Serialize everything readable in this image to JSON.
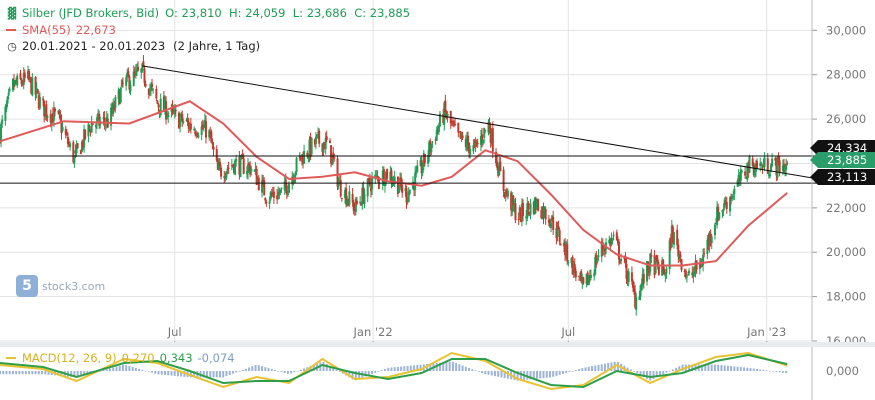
{
  "legend": {
    "instrument": "Silber (JFD Brokers, Bid)",
    "ohlc": "O: 23,810  H: 24,059  L: 23,686  C: 23,885",
    "sma_label": "SMA(55)",
    "sma_value": "22,673",
    "range": "20.01.2021 - 20.01.2023",
    "period": "(2 Jahre, 1 Tag)",
    "macd_label": "MACD(12, 26, 9)",
    "macd_v1": "0,270",
    "macd_v2": "0,343",
    "macd_v3": "-0,074"
  },
  "watermark": {
    "logo": "5",
    "text": "stock3.com"
  },
  "colors": {
    "up": "#1f9d55",
    "down": "#c0392b",
    "sma": "#e05a5a",
    "macd": "#e8c230",
    "signal": "#2e9e48",
    "hist": "#9db4d8",
    "last": "#2a9d6a",
    "grid": "#e3e3e3",
    "axis_text": "#777777"
  },
  "chart_data": [
    {
      "type": "candlestick",
      "title": "Silber (JFD Brokers, Bid)",
      "x_ticks": [
        "Jul",
        "Jan '22",
        "Jul",
        "Jan '23"
      ],
      "y_ticks": [
        "30,000",
        "28,000",
        "26,000",
        "24,000",
        "22,000",
        "20,000",
        "18,000",
        "16,000"
      ],
      "ylim": [
        16,
        30.6
      ],
      "x_range": [
        "20.01.2021",
        "20.01.2023"
      ],
      "ohlc_last": {
        "open": 23.81,
        "high": 24.059,
        "low": 23.686,
        "close": 23.885
      },
      "horizontal_lines": [
        {
          "label": "24,334",
          "value": 24.334
        },
        {
          "label": "23,113",
          "value": 23.113
        }
      ],
      "last_price_label": "23,885",
      "last_price": 23.885,
      "trendline": {
        "start": [
          "2021-06-01",
          28.4
        ],
        "end": [
          "2023-02-12",
          23.35
        ]
      },
      "close_path": [
        [
          "2021-01-20",
          25.4
        ],
        [
          "2021-02-01",
          27.5
        ],
        [
          "2021-02-15",
          27.8
        ],
        [
          "2021-03-01",
          26.5
        ],
        [
          "2021-03-15",
          26.0
        ],
        [
          "2021-03-30",
          24.2
        ],
        [
          "2021-04-15",
          25.8
        ],
        [
          "2021-05-01",
          25.9
        ],
        [
          "2021-05-15",
          27.6
        ],
        [
          "2021-06-01",
          28.1
        ],
        [
          "2021-06-15",
          26.7
        ],
        [
          "2021-07-01",
          26.1
        ],
        [
          "2021-07-15",
          25.7
        ],
        [
          "2021-08-01",
          25.5
        ],
        [
          "2021-08-10",
          23.6
        ],
        [
          "2021-08-25",
          24.0
        ],
        [
          "2021-09-10",
          23.8
        ],
        [
          "2021-09-25",
          22.5
        ],
        [
          "2021-10-10",
          22.7
        ],
        [
          "2021-10-25",
          24.2
        ],
        [
          "2021-11-10",
          25.0
        ],
        [
          "2021-11-20",
          24.9
        ],
        [
          "2021-12-01",
          23.0
        ],
        [
          "2021-12-15",
          22.0
        ],
        [
          "2021-12-31",
          23.2
        ],
        [
          "2022-01-15",
          23.6
        ],
        [
          "2022-02-01",
          22.6
        ],
        [
          "2022-02-15",
          23.8
        ],
        [
          "2022-03-08",
          26.3
        ],
        [
          "2022-03-20",
          25.2
        ],
        [
          "2022-04-05",
          24.6
        ],
        [
          "2022-04-18",
          25.8
        ],
        [
          "2022-05-01",
          23.0
        ],
        [
          "2022-05-15",
          21.6
        ],
        [
          "2022-06-01",
          22.2
        ],
        [
          "2022-06-15",
          21.5
        ],
        [
          "2022-07-01",
          19.8
        ],
        [
          "2022-07-15",
          18.3
        ],
        [
          "2022-08-01",
          20.2
        ],
        [
          "2022-08-12",
          20.6
        ],
        [
          "2022-08-25",
          19.0
        ],
        [
          "2022-09-01",
          17.9
        ],
        [
          "2022-09-15",
          19.5
        ],
        [
          "2022-09-30",
          19.1
        ],
        [
          "2022-10-05",
          20.9
        ],
        [
          "2022-10-20",
          18.8
        ],
        [
          "2022-11-01",
          19.5
        ],
        [
          "2022-11-15",
          21.6
        ],
        [
          "2022-12-01",
          22.7
        ],
        [
          "2022-12-15",
          23.9
        ],
        [
          "2023-01-01",
          23.9
        ],
        [
          "2023-01-20",
          23.885
        ]
      ],
      "sma_path": [
        [
          "2021-01-20",
          25.0
        ],
        [
          "2021-03-20",
          25.9
        ],
        [
          "2021-05-20",
          25.8
        ],
        [
          "2021-07-15",
          26.8
        ],
        [
          "2021-08-15",
          25.8
        ],
        [
          "2021-09-15",
          24.3
        ],
        [
          "2021-10-15",
          23.3
        ],
        [
          "2021-11-15",
          23.4
        ],
        [
          "2021-12-15",
          23.6
        ],
        [
          "2022-01-15",
          23.2
        ],
        [
          "2022-02-15",
          23.0
        ],
        [
          "2022-03-15",
          23.4
        ],
        [
          "2022-04-15",
          24.6
        ],
        [
          "2022-05-15",
          24.1
        ],
        [
          "2022-06-15",
          22.6
        ],
        [
          "2022-07-15",
          21.0
        ],
        [
          "2022-08-15",
          19.9
        ],
        [
          "2022-09-15",
          19.4
        ],
        [
          "2022-10-15",
          19.4
        ],
        [
          "2022-11-15",
          19.6
        ],
        [
          "2022-12-15",
          21.2
        ],
        [
          "2023-01-20",
          22.673
        ]
      ]
    },
    {
      "type": "macd",
      "title": "MACD(12, 26, 9)",
      "y_ticks": [
        "0,000"
      ],
      "ylim": [
        -1.2,
        1.2
      ],
      "last": {
        "macd": 0.27,
        "signal": 0.343,
        "histogram": -0.074
      },
      "macd_path": [
        [
          "2021-01-20",
          0.3
        ],
        [
          "2021-03-01",
          0.1
        ],
        [
          "2021-04-01",
          -0.5
        ],
        [
          "2021-05-15",
          0.6
        ],
        [
          "2021-06-15",
          0.4
        ],
        [
          "2021-07-15",
          -0.2
        ],
        [
          "2021-08-15",
          -0.8
        ],
        [
          "2021-09-15",
          -0.3
        ],
        [
          "2021-10-15",
          -0.6
        ],
        [
          "2021-11-15",
          0.6
        ],
        [
          "2021-12-15",
          -0.4
        ],
        [
          "2022-01-15",
          -0.3
        ],
        [
          "2022-02-15",
          0.1
        ],
        [
          "2022-03-15",
          0.9
        ],
        [
          "2022-04-15",
          0.5
        ],
        [
          "2022-05-15",
          -0.4
        ],
        [
          "2022-06-15",
          -0.9
        ],
        [
          "2022-07-15",
          -0.7
        ],
        [
          "2022-08-15",
          0.3
        ],
        [
          "2022-09-15",
          -0.6
        ],
        [
          "2022-10-15",
          0.1
        ],
        [
          "2022-11-15",
          0.7
        ],
        [
          "2022-12-15",
          0.9
        ],
        [
          "2023-01-20",
          0.27
        ]
      ],
      "signal_path": [
        [
          "2021-01-20",
          0.4
        ],
        [
          "2021-03-01",
          0.2
        ],
        [
          "2021-04-01",
          -0.3
        ],
        [
          "2021-05-15",
          0.4
        ],
        [
          "2021-06-15",
          0.5
        ],
        [
          "2021-07-15",
          0.0
        ],
        [
          "2021-08-15",
          -0.6
        ],
        [
          "2021-09-15",
          -0.5
        ],
        [
          "2021-10-15",
          -0.5
        ],
        [
          "2021-11-15",
          0.3
        ],
        [
          "2021-12-15",
          -0.1
        ],
        [
          "2022-01-15",
          -0.4
        ],
        [
          "2022-02-15",
          -0.1
        ],
        [
          "2022-03-15",
          0.6
        ],
        [
          "2022-04-15",
          0.6
        ],
        [
          "2022-05-15",
          -0.1
        ],
        [
          "2022-06-15",
          -0.7
        ],
        [
          "2022-07-15",
          -0.8
        ],
        [
          "2022-08-15",
          0.0
        ],
        [
          "2022-09-15",
          -0.3
        ],
        [
          "2022-10-15",
          -0.1
        ],
        [
          "2022-11-15",
          0.5
        ],
        [
          "2022-12-15",
          0.8
        ],
        [
          "2023-01-20",
          0.343
        ]
      ]
    }
  ]
}
